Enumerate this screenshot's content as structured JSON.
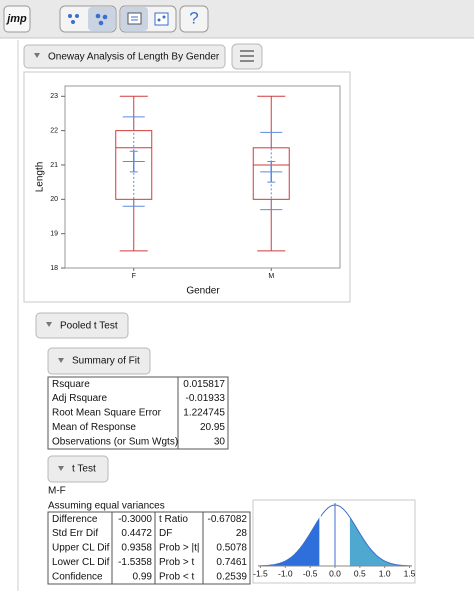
{
  "toolbar": {
    "logo": "jmp",
    "help": "?"
  },
  "report": {
    "title": "Oneway Analysis of Length By Gender",
    "pooled_title": "Pooled t Test",
    "summary_title": "Summary of Fit",
    "ttest_title": "t Test",
    "contrast": "M-F",
    "assumption": "Assuming equal variances"
  },
  "chart_data": {
    "type": "box",
    "x_label": "Gender",
    "y_label": "Length",
    "categories": [
      "F",
      "M"
    ],
    "ylim": [
      18,
      23.3
    ],
    "yticks": [
      18,
      19,
      20,
      21,
      22,
      23
    ],
    "box_color": "#d23a3a",
    "mean_color": "#5b8be0",
    "boxes": [
      {
        "min": 18.5,
        "q1": 20,
        "median": 21.5,
        "q3": 22,
        "max": 23,
        "mean": 21.1,
        "sd_lower": 19.8,
        "sd_upper": 22.4,
        "ci_lower": 20.8,
        "ci_upper": 21.4
      },
      {
        "min": 18.5,
        "q1": 20,
        "median": 21,
        "q3": 21.5,
        "max": 23,
        "mean": 20.8,
        "sd_lower": 19.7,
        "sd_upper": 21.95,
        "ci_lower": 20.5,
        "ci_upper": 21.1
      }
    ]
  },
  "summary_of_fit": {
    "rows": [
      [
        "Rsquare",
        "0.015817"
      ],
      [
        "Adj Rsquare",
        "-0.01933"
      ],
      [
        "Root Mean Square Error",
        "1.224745"
      ],
      [
        "Mean of Response",
        "20.95"
      ],
      [
        "Observations (or Sum Wgts)",
        "30"
      ]
    ]
  },
  "t_test": {
    "rows": [
      [
        "Difference",
        "-0.3000",
        "t Ratio",
        "-0.67082"
      ],
      [
        "Std Err Dif",
        "0.4472",
        "DF",
        "28"
      ],
      [
        "Upper CL Dif",
        "0.9358",
        "Prob > |t|",
        "0.5078"
      ],
      [
        "Lower CL Dif",
        "-1.5358",
        "Prob > t",
        "0.7461"
      ],
      [
        "Confidence",
        "0.99",
        "Prob < t",
        "0.2539"
      ]
    ]
  },
  "t_plot": {
    "xlim": [
      -1.55,
      1.55
    ],
    "xticks": [
      -1.5,
      {
        "value": -1,
        "label": "-1.0"
      },
      -0.5,
      {
        "value": 0,
        "label": "0.0"
      },
      0.5,
      {
        "value": 1,
        "label": "1.0"
      },
      1.5
    ]
  }
}
